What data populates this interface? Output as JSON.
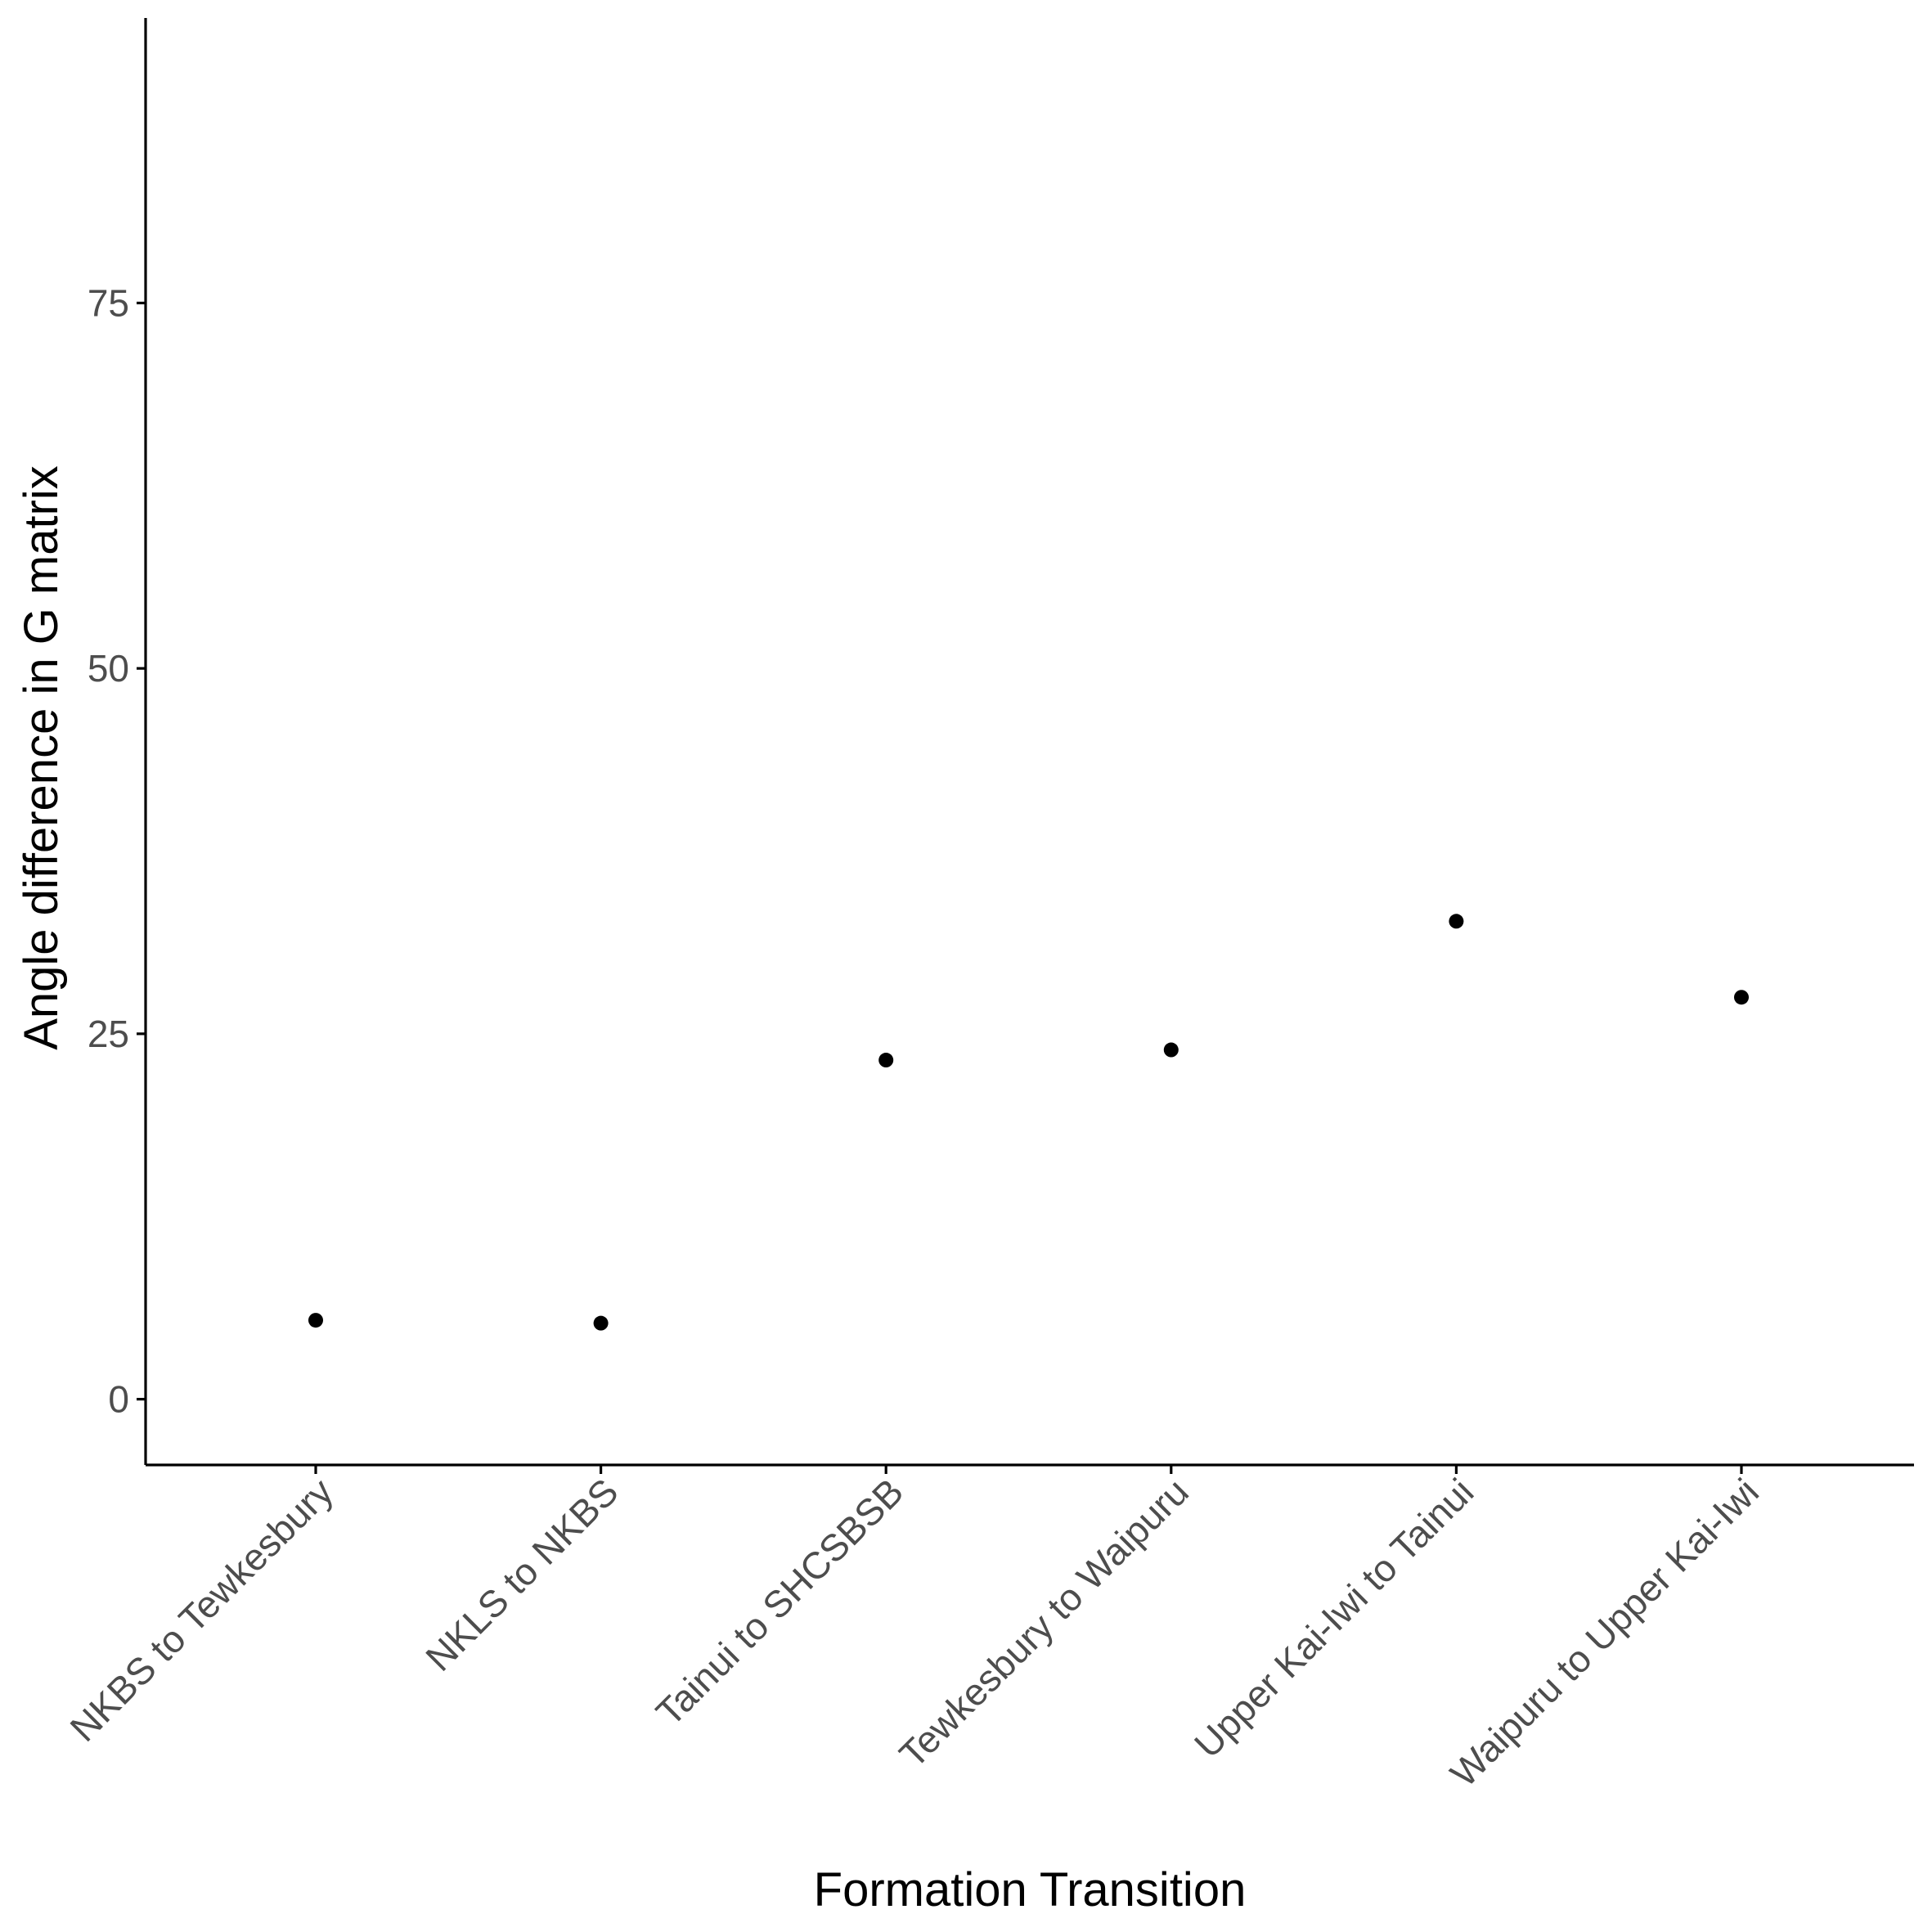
{
  "chart_data": {
    "type": "scatter",
    "title": "",
    "xlabel": "Formation Transition",
    "ylabel": "Angle difference in G matrix",
    "categories": [
      "NKBS to Tewkesbury",
      "NKLS to NKBS",
      "Tainui to SHCSBSB",
      "Tewkesbury to Waipuru",
      "Upper Kai-Iwi to Tainui",
      "Waipuru to Upper Kai-Iwi"
    ],
    "values": [
      5.4,
      5.2,
      23.2,
      23.9,
      32.7,
      27.5
    ],
    "yticks": [
      0,
      25,
      50,
      75
    ],
    "ytick_labels": [
      "0",
      "25",
      "50",
      "75"
    ],
    "ylim": [
      -4.5,
      94.5
    ],
    "grid": false,
    "legend": "none",
    "point_color": "#000000",
    "axis_color": "#000000",
    "tick_label_color": "#4d4d4d"
  }
}
